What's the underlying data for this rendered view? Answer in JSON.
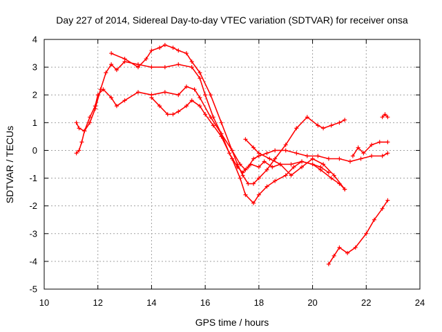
{
  "chart_data": {
    "type": "scatter",
    "title": "Day 227 of 2014, Sidereal Day-to-day VTEC variation (SDTVAR) for receiver onsa",
    "xlabel": "GPS time / hours",
    "ylabel": "SDTVAR / TECUs",
    "xlim": [
      10,
      24
    ],
    "ylim": [
      -5,
      4
    ],
    "xticks": [
      10,
      12,
      14,
      16,
      18,
      20,
      22,
      24
    ],
    "yticks": [
      4,
      3,
      2,
      1,
      0,
      -1,
      -2,
      -3,
      -4,
      -5
    ],
    "grid": true,
    "marker": "plus",
    "color": "#ff0000",
    "series": [
      {
        "x": [
          11.2,
          11.3,
          11.4,
          11.5,
          11.7,
          11.9,
          12.0,
          12.2,
          12.5,
          12.7,
          13.0,
          13.5,
          14.0,
          14.5,
          15.0,
          15.3,
          15.6,
          15.8,
          16.2,
          16.6,
          17.0,
          17.3,
          17.5,
          17.7,
          18.0,
          18.2,
          18.5,
          18.8,
          19.2,
          19.6,
          20.0,
          20.3,
          20.7,
          21.0,
          21.2
        ],
        "y": [
          -0.1,
          0.0,
          0.3,
          0.7,
          1.2,
          1.6,
          2.0,
          2.2,
          1.9,
          1.6,
          1.8,
          2.1,
          2.0,
          2.1,
          2.0,
          2.3,
          2.2,
          1.9,
          1.2,
          0.6,
          0.0,
          -0.5,
          -0.7,
          -0.5,
          -0.6,
          -0.4,
          -0.6,
          -0.5,
          -0.5,
          -0.4,
          -0.5,
          -0.7,
          -1.0,
          -1.2,
          -1.4
        ]
      },
      {
        "x": [
          11.2,
          11.3,
          11.5,
          11.7,
          11.9,
          12.1,
          12.3,
          12.5,
          12.7,
          13.0,
          13.5,
          14.0,
          14.5,
          15.0,
          15.5,
          15.8,
          16.0,
          16.3,
          16.6,
          16.9,
          17.2,
          17.4,
          17.6,
          17.8,
          18.0,
          18.3,
          18.6,
          19.0,
          19.4,
          19.8,
          20.2,
          20.6,
          21.0,
          21.4,
          21.8,
          22.2,
          22.6,
          22.8
        ],
        "y": [
          1.0,
          0.8,
          0.7,
          1.0,
          1.5,
          2.2,
          2.8,
          3.1,
          2.9,
          3.2,
          3.1,
          3.0,
          3.0,
          3.1,
          3.0,
          2.6,
          2.0,
          1.2,
          0.6,
          -0.1,
          -0.6,
          -0.8,
          -0.6,
          -0.3,
          -0.2,
          -0.1,
          0.0,
          0.0,
          -0.1,
          -0.2,
          -0.2,
          -0.3,
          -0.3,
          -0.4,
          -0.3,
          -0.2,
          -0.2,
          -0.1
        ]
      },
      {
        "x": [
          12.5,
          13.0,
          13.5,
          13.8,
          14.0,
          14.3,
          14.5,
          14.8,
          15.0,
          15.3,
          15.5,
          15.8,
          16.2,
          16.6,
          17.0,
          17.2,
          17.4,
          17.6,
          17.8,
          18.0,
          18.3,
          18.6,
          19.0,
          19.4,
          19.8,
          20.2,
          20.4,
          20.7,
          21.0,
          21.2
        ],
        "y": [
          3.5,
          3.3,
          3.0,
          3.3,
          3.6,
          3.7,
          3.8,
          3.7,
          3.6,
          3.5,
          3.2,
          2.8,
          2.0,
          1.0,
          0.0,
          -0.5,
          -0.9,
          -1.2,
          -1.2,
          -1.0,
          -0.7,
          -0.3,
          0.2,
          0.8,
          1.2,
          0.9,
          0.8,
          0.9,
          1.0,
          1.1
        ]
      },
      {
        "x": [
          14.0,
          14.3,
          14.6,
          14.8,
          15.0,
          15.3,
          15.5,
          15.8,
          16.0,
          16.3,
          16.6,
          17.0,
          17.3,
          17.5,
          17.8,
          18.0,
          18.3,
          18.6,
          19.0,
          19.3,
          19.6,
          20.0,
          20.3,
          20.6
        ],
        "y": [
          1.9,
          1.6,
          1.3,
          1.3,
          1.4,
          1.6,
          1.8,
          1.6,
          1.3,
          0.9,
          0.5,
          -0.3,
          -1.0,
          -1.6,
          -1.9,
          -1.6,
          -1.3,
          -1.1,
          -0.9,
          -0.6,
          -0.4,
          -0.5,
          -0.6,
          -0.8
        ]
      },
      {
        "x": [
          17.5,
          17.8,
          18.0,
          18.4,
          18.8,
          19.2,
          19.6,
          20.0,
          20.4,
          20.8,
          21.2
        ],
        "y": [
          0.4,
          0.1,
          -0.1,
          -0.3,
          -0.5,
          -0.9,
          -0.6,
          -0.3,
          -0.5,
          -0.9,
          -1.4
        ]
      },
      {
        "x": [
          20.6,
          20.8,
          21.0,
          21.3,
          21.6,
          22.0,
          22.3,
          22.6,
          22.8
        ],
        "y": [
          -4.1,
          -3.8,
          -3.5,
          -3.7,
          -3.5,
          -3.0,
          -2.5,
          -2.1,
          -1.8
        ]
      },
      {
        "x": [
          21.5,
          21.7,
          21.9,
          22.2,
          22.5,
          22.8
        ],
        "y": [
          -0.2,
          0.1,
          -0.1,
          0.2,
          0.3,
          0.3
        ]
      },
      {
        "x": [
          22.6,
          22.7,
          22.8
        ],
        "y": [
          1.2,
          1.3,
          1.2
        ]
      }
    ]
  }
}
